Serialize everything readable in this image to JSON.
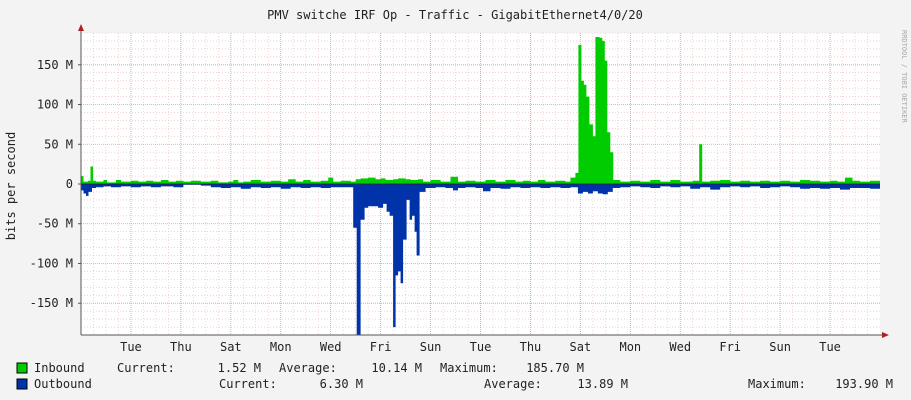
{
  "title": "PMV switche IRF Op - Traffic - GigabitEthernet4/0/20",
  "watermark": "RRDTOOL / TOBI OETIKER",
  "colors": {
    "background": "#f3f3f3",
    "canvas": "#ffffff",
    "inbound": "#00cc00",
    "outbound": "#0033aa",
    "grid_minor": "#e9b8b8",
    "grid_major": "#d79a9a",
    "axis": "#555555",
    "arrow": "#aa2222"
  },
  "chart_data": {
    "type": "area",
    "title": "PMV switche IRF Op - Traffic - GigabitEthernet4/0/20",
    "ylabel": "bits per second",
    "ylim": [
      -190,
      190
    ],
    "y_unit": "M",
    "yticks": [
      {
        "value": 150,
        "label": "150 M"
      },
      {
        "value": 100,
        "label": "100 M"
      },
      {
        "value": 50,
        "label": "50 M"
      },
      {
        "value": 0,
        "label": "0"
      },
      {
        "value": -50,
        "label": "-50 M"
      },
      {
        "value": -100,
        "label": "-100 M"
      },
      {
        "value": -150,
        "label": "-150 M"
      }
    ],
    "xlim": [
      0,
      16
    ],
    "xticks": [
      {
        "value": 1,
        "label": "Tue"
      },
      {
        "value": 2,
        "label": "Thu"
      },
      {
        "value": 3,
        "label": "Sat"
      },
      {
        "value": 4,
        "label": "Mon"
      },
      {
        "value": 5,
        "label": "Wed"
      },
      {
        "value": 6,
        "label": "Fri"
      },
      {
        "value": 7,
        "label": "Sun"
      },
      {
        "value": 8,
        "label": "Tue"
      },
      {
        "value": 9,
        "label": "Thu"
      },
      {
        "value": 10,
        "label": "Sat"
      },
      {
        "value": 11,
        "label": "Mon"
      },
      {
        "value": 12,
        "label": "Wed"
      },
      {
        "value": 13,
        "label": "Fri"
      },
      {
        "value": 14,
        "label": "Sun"
      },
      {
        "value": 15,
        "label": "Tue"
      }
    ],
    "grid": true,
    "legend_position": "bottom-left",
    "series": [
      {
        "name": "Inbound",
        "color": "#00cc00",
        "points": [
          [
            0.0,
            10
          ],
          [
            0.05,
            3
          ],
          [
            0.14,
            4
          ],
          [
            0.19,
            22
          ],
          [
            0.24,
            4
          ],
          [
            0.3,
            3
          ],
          [
            0.45,
            5
          ],
          [
            0.52,
            2
          ],
          [
            0.7,
            5
          ],
          [
            0.8,
            3
          ],
          [
            1.0,
            4
          ],
          [
            1.15,
            3
          ],
          [
            1.3,
            4
          ],
          [
            1.45,
            3
          ],
          [
            1.6,
            5
          ],
          [
            1.75,
            3
          ],
          [
            1.9,
            4
          ],
          [
            2.05,
            3
          ],
          [
            2.2,
            4
          ],
          [
            2.4,
            3
          ],
          [
            2.6,
            4
          ],
          [
            2.75,
            2
          ],
          [
            2.95,
            3
          ],
          [
            3.05,
            5
          ],
          [
            3.15,
            2
          ],
          [
            3.25,
            3
          ],
          [
            3.4,
            5
          ],
          [
            3.6,
            3
          ],
          [
            3.8,
            4
          ],
          [
            4.0,
            3
          ],
          [
            4.15,
            6
          ],
          [
            4.3,
            3
          ],
          [
            4.45,
            5
          ],
          [
            4.6,
            3
          ],
          [
            4.8,
            4
          ],
          [
            4.95,
            8
          ],
          [
            5.05,
            3
          ],
          [
            5.2,
            4
          ],
          [
            5.4,
            3
          ],
          [
            5.5,
            6
          ],
          [
            5.6,
            7
          ],
          [
            5.75,
            8
          ],
          [
            5.9,
            6
          ],
          [
            6.0,
            7
          ],
          [
            6.1,
            5
          ],
          [
            6.25,
            6
          ],
          [
            6.35,
            7
          ],
          [
            6.5,
            6
          ],
          [
            6.6,
            5
          ],
          [
            6.75,
            6
          ],
          [
            6.85,
            3
          ],
          [
            7.0,
            5
          ],
          [
            7.2,
            3
          ],
          [
            7.4,
            9
          ],
          [
            7.55,
            3
          ],
          [
            7.7,
            4
          ],
          [
            7.9,
            3
          ],
          [
            8.1,
            5
          ],
          [
            8.3,
            3
          ],
          [
            8.5,
            5
          ],
          [
            8.7,
            3
          ],
          [
            8.85,
            4
          ],
          [
            9.0,
            3
          ],
          [
            9.15,
            5
          ],
          [
            9.3,
            3
          ],
          [
            9.5,
            4
          ],
          [
            9.7,
            3
          ],
          [
            9.8,
            8
          ],
          [
            9.9,
            14
          ],
          [
            9.96,
            175
          ],
          [
            10.02,
            130
          ],
          [
            10.07,
            125
          ],
          [
            10.12,
            110
          ],
          [
            10.18,
            75
          ],
          [
            10.25,
            60
          ],
          [
            10.3,
            185
          ],
          [
            10.38,
            184
          ],
          [
            10.44,
            180
          ],
          [
            10.49,
            155
          ],
          [
            10.54,
            65
          ],
          [
            10.6,
            40
          ],
          [
            10.66,
            5
          ],
          [
            10.8,
            3
          ],
          [
            11.0,
            4
          ],
          [
            11.2,
            3
          ],
          [
            11.4,
            5
          ],
          [
            11.6,
            3
          ],
          [
            11.8,
            5
          ],
          [
            12.0,
            3
          ],
          [
            12.25,
            4
          ],
          [
            12.38,
            50
          ],
          [
            12.44,
            3
          ],
          [
            12.6,
            4
          ],
          [
            12.8,
            5
          ],
          [
            13.0,
            3
          ],
          [
            13.2,
            4
          ],
          [
            13.4,
            3
          ],
          [
            13.6,
            4
          ],
          [
            13.8,
            3
          ],
          [
            14.0,
            4
          ],
          [
            14.2,
            3
          ],
          [
            14.4,
            5
          ],
          [
            14.6,
            4
          ],
          [
            14.8,
            3
          ],
          [
            15.0,
            4
          ],
          [
            15.15,
            3
          ],
          [
            15.3,
            8
          ],
          [
            15.45,
            4
          ],
          [
            15.6,
            3
          ],
          [
            15.8,
            4
          ],
          [
            16.0,
            3
          ]
        ]
      },
      {
        "name": "Outbound",
        "color": "#0033aa",
        "points": [
          [
            0.0,
            -8
          ],
          [
            0.05,
            -12
          ],
          [
            0.1,
            -15
          ],
          [
            0.15,
            -10
          ],
          [
            0.22,
            -5
          ],
          [
            0.3,
            -4
          ],
          [
            0.45,
            -3
          ],
          [
            0.6,
            -4
          ],
          [
            0.8,
            -3
          ],
          [
            1.0,
            -4
          ],
          [
            1.2,
            -3
          ],
          [
            1.4,
            -4
          ],
          [
            1.6,
            -3
          ],
          [
            1.85,
            -4
          ],
          [
            2.05,
            -1
          ],
          [
            2.2,
            -1
          ],
          [
            2.4,
            -2
          ],
          [
            2.6,
            -4
          ],
          [
            2.8,
            -5
          ],
          [
            3.0,
            -4
          ],
          [
            3.2,
            -6
          ],
          [
            3.4,
            -4
          ],
          [
            3.6,
            -5
          ],
          [
            3.8,
            -4
          ],
          [
            4.0,
            -6
          ],
          [
            4.2,
            -4
          ],
          [
            4.4,
            -5
          ],
          [
            4.6,
            -4
          ],
          [
            4.8,
            -5
          ],
          [
            5.0,
            -4
          ],
          [
            5.2,
            -4
          ],
          [
            5.35,
            -4
          ],
          [
            5.45,
            -55
          ],
          [
            5.52,
            -190
          ],
          [
            5.6,
            -45
          ],
          [
            5.68,
            -30
          ],
          [
            5.75,
            -28
          ],
          [
            5.85,
            -28
          ],
          [
            5.95,
            -30
          ],
          [
            6.05,
            -25
          ],
          [
            6.12,
            -35
          ],
          [
            6.18,
            -40
          ],
          [
            6.25,
            -180
          ],
          [
            6.3,
            -115
          ],
          [
            6.35,
            -110
          ],
          [
            6.4,
            -125
          ],
          [
            6.45,
            -70
          ],
          [
            6.52,
            -20
          ],
          [
            6.58,
            -45
          ],
          [
            6.63,
            -40
          ],
          [
            6.68,
            -60
          ],
          [
            6.72,
            -90
          ],
          [
            6.78,
            -10
          ],
          [
            6.9,
            -5
          ],
          [
            7.1,
            -4
          ],
          [
            7.3,
            -5
          ],
          [
            7.45,
            -8
          ],
          [
            7.55,
            -5
          ],
          [
            7.7,
            -4
          ],
          [
            7.9,
            -5
          ],
          [
            8.05,
            -9
          ],
          [
            8.2,
            -5
          ],
          [
            8.4,
            -6
          ],
          [
            8.6,
            -4
          ],
          [
            8.8,
            -5
          ],
          [
            9.0,
            -4
          ],
          [
            9.2,
            -5
          ],
          [
            9.4,
            -4
          ],
          [
            9.6,
            -5
          ],
          [
            9.8,
            -4
          ],
          [
            9.95,
            -12
          ],
          [
            10.05,
            -10
          ],
          [
            10.15,
            -12
          ],
          [
            10.25,
            -9
          ],
          [
            10.35,
            -12
          ],
          [
            10.45,
            -13
          ],
          [
            10.55,
            -10
          ],
          [
            10.65,
            -5
          ],
          [
            10.8,
            -4
          ],
          [
            11.0,
            -3
          ],
          [
            11.2,
            -4
          ],
          [
            11.4,
            -5
          ],
          [
            11.6,
            -3
          ],
          [
            11.8,
            -4
          ],
          [
            12.0,
            -3
          ],
          [
            12.2,
            -6
          ],
          [
            12.4,
            -4
          ],
          [
            12.6,
            -7
          ],
          [
            12.8,
            -4
          ],
          [
            13.0,
            -3
          ],
          [
            13.2,
            -4
          ],
          [
            13.4,
            -3
          ],
          [
            13.6,
            -5
          ],
          [
            13.8,
            -4
          ],
          [
            14.0,
            -3
          ],
          [
            14.2,
            -4
          ],
          [
            14.4,
            -6
          ],
          [
            14.6,
            -5
          ],
          [
            14.8,
            -6
          ],
          [
            15.0,
            -5
          ],
          [
            15.2,
            -7
          ],
          [
            15.4,
            -5
          ],
          [
            15.6,
            -5
          ],
          [
            15.8,
            -6
          ],
          [
            16.0,
            -5
          ]
        ]
      }
    ]
  },
  "legend": [
    {
      "name": "Inbound",
      "color": "#00cc00",
      "current_label": "Current:",
      "current": "1.52 M",
      "average_label": "Average:",
      "average": "10.14 M",
      "maximum_label": "Maximum:",
      "maximum": "185.70 M"
    },
    {
      "name": "Outbound",
      "color": "#0033aa",
      "current_label": "Current:",
      "current": "6.30 M",
      "average_label": "Average:",
      "average": "13.89 M",
      "maximum_label": "Maximum:",
      "maximum": "193.90 M"
    }
  ]
}
